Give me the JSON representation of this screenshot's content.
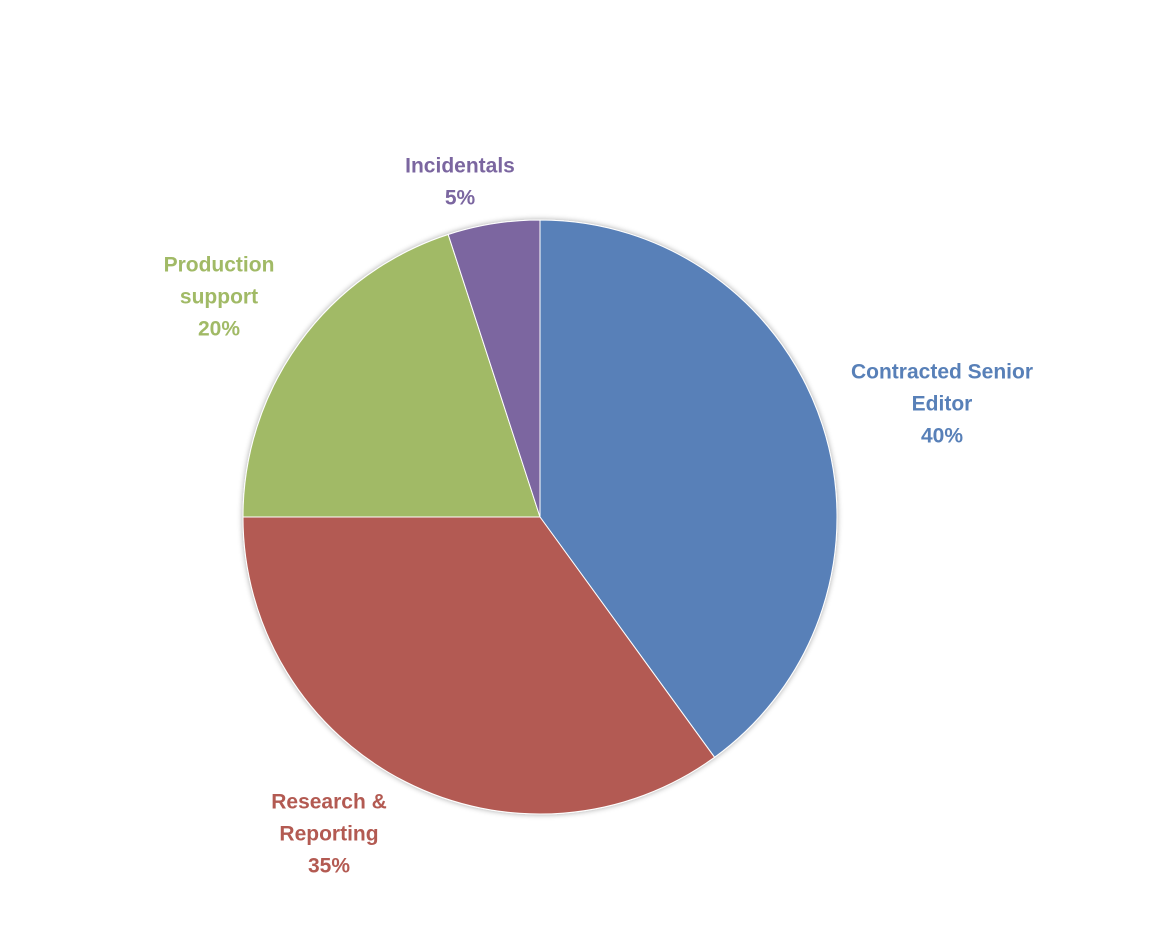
{
  "chart_data": {
    "type": "pie",
    "title": "",
    "start_angle_deg": 0,
    "direction": "clockwise",
    "legend": "none",
    "slices": [
      {
        "label_lines": [
          "Contracted Senior",
          "Editor"
        ],
        "percent_label": "40%",
        "value": 40,
        "color": "#5880B8"
      },
      {
        "label_lines": [
          "Research &",
          "Reporting"
        ],
        "percent_label": "35%",
        "value": 35,
        "color": "#B35A52"
      },
      {
        "label_lines": [
          "Production",
          "support"
        ],
        "percent_label": "20%",
        "value": 20,
        "color": "#A1BA66"
      },
      {
        "label_lines": [
          "Incidentals"
        ],
        "percent_label": "5%",
        "value": 5,
        "color": "#7B66A0"
      }
    ]
  }
}
